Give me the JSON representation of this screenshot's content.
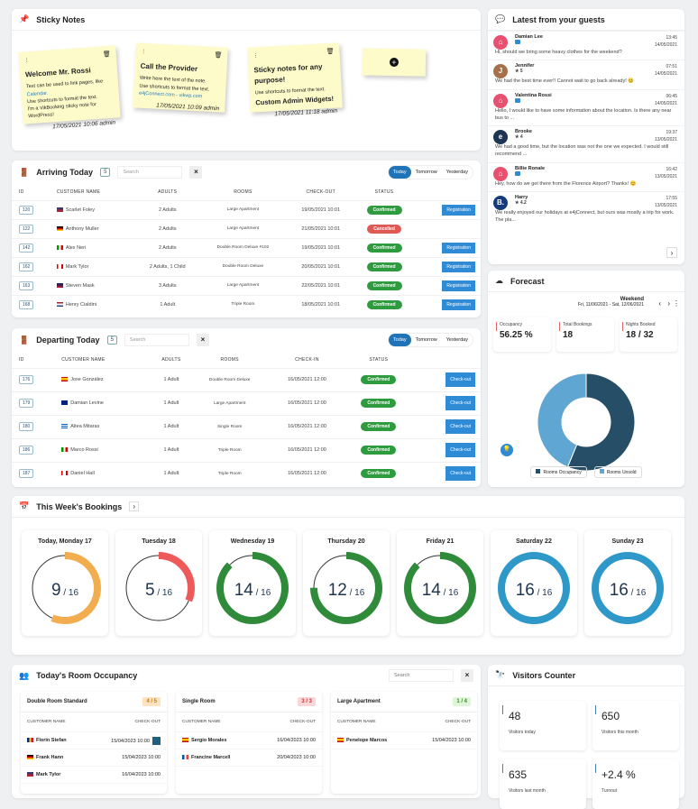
{
  "colors": {
    "accent": "#1f73b7",
    "confirmed": "#2e9b3f",
    "cancelled": "#e05a55",
    "action": "#2f8bd6"
  },
  "sticky": {
    "title": "Sticky Notes",
    "icon": "pin-icon",
    "add_icon": "plus-circle-icon",
    "notes": [
      {
        "title": "Welcome Mr. Rossi",
        "lines": [
          "Text can be used to link pages, like",
          "Calendar.",
          "Use shortcuts to format the text.",
          "I'm a VikBooking sticky note for",
          "WordPress!"
        ],
        "footer": "17/05/2021 10:06 admin"
      },
      {
        "title": "Call the Provider",
        "lines": [
          "Write here the text of the note.",
          "Use shortcuts to format the text.",
          "e4jConnect.com - vikwp.com"
        ],
        "footer": "17/05/2021 10:09 admin"
      },
      {
        "title": "Sticky notes for any purpose!",
        "lines": [
          "Use shortcuts to format the text.",
          "Custom Admin Widgets!"
        ],
        "footer": "17/05/2021 11:18 admin"
      }
    ]
  },
  "arriving": {
    "title": "Arriving Today",
    "count": "5",
    "search_placeholder": "Search",
    "tabs": [
      "Today",
      "Tomorrow",
      "Yesterday"
    ],
    "columns": [
      "ID",
      "CUSTOMER NAME",
      "ADULTS",
      "ROOMS",
      "CHECK-OUT",
      "STATUS"
    ],
    "rows": [
      {
        "id": "120",
        "flag": "us",
        "name": "Scarlet Foley",
        "adults": "2 Adults",
        "room": "Large Apartment",
        "date": "19/05/2021 10:01",
        "status": "Confirmed",
        "action": "Registration"
      },
      {
        "id": "122",
        "flag": "de",
        "name": "Anthony Muller",
        "adults": "2 Adults",
        "room": "Large Apartment",
        "date": "21/05/2021 10:01",
        "status": "Cancelled",
        "action": ""
      },
      {
        "id": "142",
        "flag": "it",
        "name": "Alex Neri",
        "adults": "2 Adults",
        "room": "Double Room Deluxe #102",
        "date": "19/05/2021 10:01",
        "status": "Confirmed",
        "action": "Registration"
      },
      {
        "id": "162",
        "flag": "ca",
        "name": "Mark Tylor",
        "adults": "2 Adults, 1 Child",
        "room": "Double Room Deluxe",
        "date": "20/05/2021 10:01",
        "status": "Confirmed",
        "action": "Registration"
      },
      {
        "id": "163",
        "flag": "gb",
        "name": "Steven Mask",
        "adults": "3 Adults",
        "room": "Large Apartment",
        "date": "22/05/2021 10:01",
        "status": "Confirmed",
        "action": "Registration"
      },
      {
        "id": "168",
        "flag": "nl",
        "name": "Henry Cialdini",
        "adults": "1 Adult",
        "room": "Triple Room",
        "date": "18/05/2021 10:01",
        "status": "Confirmed",
        "action": "Registration"
      }
    ]
  },
  "departing": {
    "title": "Departing Today",
    "count": "5",
    "search_placeholder": "Search",
    "tabs": [
      "Today",
      "Tomorrow",
      "Yesterday"
    ],
    "columns": [
      "ID",
      "CUSTOMER NAME",
      "ADULTS",
      "ROOMS",
      "CHECK-IN",
      "STATUS"
    ],
    "rows": [
      {
        "id": "176",
        "flag": "es",
        "name": "Jose González",
        "adults": "1 Adult",
        "room": "Double Room Deluxe",
        "date": "16/05/2021 12:00",
        "status": "Confirmed",
        "action": "Check-out"
      },
      {
        "id": "179",
        "flag": "au",
        "name": "Damian Levine",
        "adults": "1 Adult",
        "room": "Large Apartment",
        "date": "16/05/2021 12:00",
        "status": "Confirmed",
        "action": "Check-out"
      },
      {
        "id": "180",
        "flag": "gr",
        "name": "Altea Mitaras",
        "adults": "1 Adult",
        "room": "Single Room",
        "date": "16/05/2021 12:00",
        "status": "Confirmed",
        "action": "Check-out"
      },
      {
        "id": "186",
        "flag": "it",
        "name": "Marco Rossi",
        "adults": "1 Adult",
        "room": "Triple Room",
        "date": "16/05/2021 12:00",
        "status": "Confirmed",
        "action": "Check-out"
      },
      {
        "id": "187",
        "flag": "ca",
        "name": "Daniel Hall",
        "adults": "1 Adult",
        "room": "Triple Room",
        "date": "16/05/2021 12:00",
        "status": "Confirmed",
        "action": "Check-out"
      }
    ]
  },
  "guests": {
    "title": "Latest from your guests",
    "messages": [
      {
        "name": "Damian Lee",
        "source": "airbnb",
        "sub": "chat",
        "time": "13:45",
        "date": "14/05/2021",
        "text": "Hi, should we bring some heavy clothes for the weekend?"
      },
      {
        "name": "Jennifer",
        "source": "photo",
        "sub": "★ 5",
        "time": "07:51",
        "date": "14/05/2021",
        "text": "We had the best time ever!! Cannot wait to go back already! 😊"
      },
      {
        "name": "Valentina Rossi",
        "source": "airbnb",
        "sub": "chat",
        "time": "06:45",
        "date": "14/05/2021",
        "text": "Hello, I would like to have some information about the location. Is there any near bus to ..."
      },
      {
        "name": "Brooke",
        "source": "e4j",
        "sub": "★ 4",
        "time": "19:37",
        "date": "13/05/2021",
        "text": "We had a good time, but the location was not the one we expected. I would still recommend ..."
      },
      {
        "name": "Billie Ronale",
        "source": "airbnb",
        "sub": "chat",
        "time": "16:42",
        "date": "13/05/2021",
        "text": "Hey, how do we get there from the Florence Airport? Thanks! 😊"
      },
      {
        "name": "Harry",
        "source": "booking",
        "sub": "★ 4.2",
        "time": "17:55",
        "date": "13/05/2021",
        "text": "We really enjoyed our holidays at e4jConnect, but ours was mostly a trip for work. The pla..."
      }
    ]
  },
  "forecast": {
    "title": "Forecast",
    "period": "Weekend",
    "range": "Fri, 11/06/2021 - Sat, 12/06/2021",
    "stats": [
      {
        "label": "Occupancy",
        "value": "56.25 %"
      },
      {
        "label": "Total Bookings",
        "value": "18"
      },
      {
        "label": "Nights Booked",
        "value": "18 / 32"
      }
    ],
    "chart_data": {
      "type": "pie",
      "donut": true,
      "categories": [
        "Rooms Occupancy",
        "Rooms Unsold"
      ],
      "values": [
        18,
        14
      ],
      "colors": [
        "#264e66",
        "#5fa6d3"
      ],
      "legend": "bottom"
    }
  },
  "week": {
    "title": "This Week's Bookings",
    "days": [
      {
        "label": "Today, Monday 17",
        "booked": 9,
        "total": 16,
        "color": "#f2ad4e"
      },
      {
        "label": "Tuesday 18",
        "booked": 5,
        "total": 16,
        "color": "#ee5a5a"
      },
      {
        "label": "Wednesday 19",
        "booked": 14,
        "total": 16,
        "color": "#2f8a3a"
      },
      {
        "label": "Thursday 20",
        "booked": 12,
        "total": 16,
        "color": "#2f8a3a"
      },
      {
        "label": "Friday 21",
        "booked": 14,
        "total": 16,
        "color": "#2f8a3a"
      },
      {
        "label": "Saturday 22",
        "booked": 16,
        "total": 16,
        "color": "#2e98c8"
      },
      {
        "label": "Sunday 23",
        "booked": 16,
        "total": 16,
        "color": "#2e98c8"
      }
    ]
  },
  "occupancy": {
    "title": "Today's Room Occupancy",
    "search_placeholder": "Search",
    "col_name": "CUSTOMER NAME",
    "col_date": "CHECK-OUT",
    "rooms": [
      {
        "name": "Double Room Standard",
        "badge": "4 / 5",
        "bg": "#fde3bf",
        "fg": "#c77b1b",
        "guests": [
          {
            "flag": "ro",
            "name": "Florin Stefan",
            "date": "15/04/2023 10:00",
            "icon": true
          },
          {
            "flag": "de",
            "name": "Frank Hann",
            "date": "15/04/2023 10:00"
          },
          {
            "flag": "us",
            "name": "Mark Tylor",
            "date": "16/04/2023 10:00"
          }
        ]
      },
      {
        "name": "Single Room",
        "badge": "3 / 3",
        "bg": "#fbd6d6",
        "fg": "#c33",
        "guests": [
          {
            "flag": "es",
            "name": "Sergio Morales",
            "date": "16/04/2023 10:00"
          },
          {
            "flag": "fr",
            "name": "Francine Marcell",
            "date": "20/04/2023 10:00"
          }
        ]
      },
      {
        "name": "Large Apartment",
        "badge": "1 / 4",
        "bg": "#dff5d8",
        "fg": "#3a8a2a",
        "guests": [
          {
            "flag": "es",
            "name": "Penelope Marcos",
            "date": "15/04/2023 10:00"
          }
        ]
      }
    ]
  },
  "visitors": {
    "title": "Visitors Counter",
    "stats": [
      {
        "value": "48",
        "label": "Visitors today"
      },
      {
        "value": "650",
        "label": "Visitors this month"
      },
      {
        "value": "635",
        "label": "Visitors last month"
      },
      {
        "value": "+2.4 %",
        "label": "Turnout"
      }
    ]
  }
}
